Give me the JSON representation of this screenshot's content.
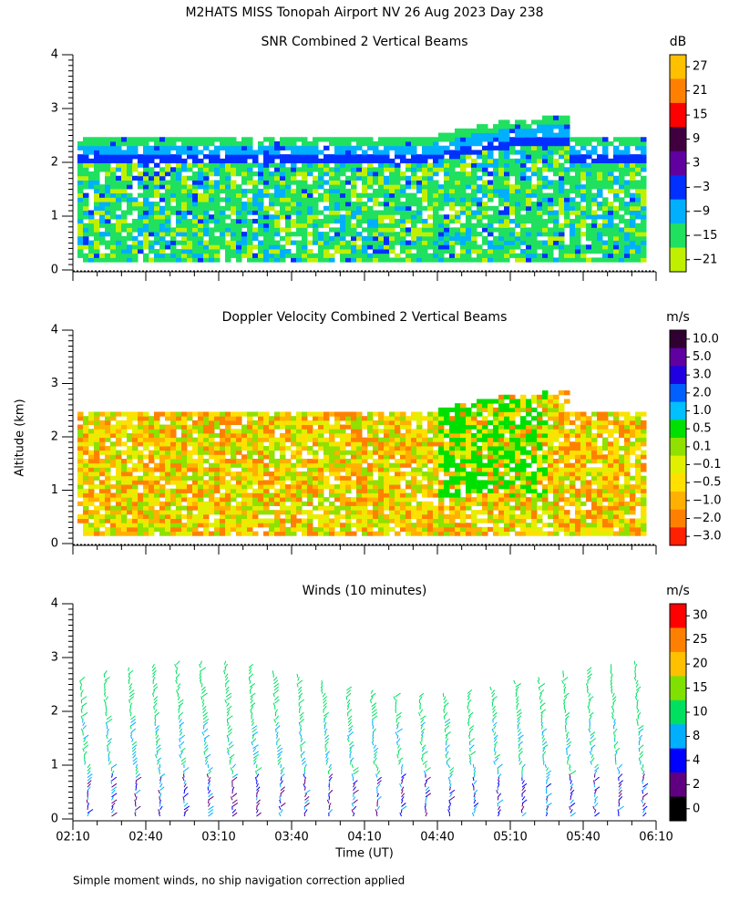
{
  "title": "M2HATS MISS Tonopah Airport NV  26 Aug 2023 Day 238",
  "y_axis_label": "Altitude (km)",
  "x_axis_label": "Time (UT)",
  "footnote": "Simple moment winds, no ship navigation correction applied",
  "x_ticks": [
    "02:10",
    "02:40",
    "03:10",
    "03:40",
    "04:10",
    "04:40",
    "05:10",
    "05:40",
    "06:10"
  ],
  "panels": [
    {
      "title": "SNR Combined 2 Vertical Beams",
      "y_ticks": [
        "0",
        "1",
        "2",
        "3",
        "4"
      ],
      "colorbar": {
        "unit": "dB",
        "labels": [
          "27",
          "21",
          "15",
          "9",
          "3",
          "−3",
          "−9",
          "−15",
          "−21"
        ],
        "colors": [
          "#ffc000",
          "#ff8000",
          "#ff0000",
          "#400040",
          "#6000a0",
          "#0030ff",
          "#00b0ff",
          "#20e060",
          "#c0f000"
        ]
      }
    },
    {
      "title": "Doppler Velocity Combined 2 Vertical Beams",
      "y_ticks": [
        "0",
        "1",
        "2",
        "3",
        "4"
      ],
      "colorbar": {
        "unit": "m/s",
        "labels": [
          "10.0",
          "5.0",
          "3.0",
          "2.0",
          "1.0",
          "0.5",
          "0.1",
          "−0.1",
          "−0.5",
          "−1.0",
          "−2.0",
          "−3.0"
        ],
        "colors": [
          "#300030",
          "#6000a0",
          "#2000e0",
          "#0060ff",
          "#00c0ff",
          "#00e000",
          "#90e000",
          "#e0f000",
          "#ffe000",
          "#ffb000",
          "#ff8000",
          "#ff2000"
        ]
      }
    },
    {
      "title": "Winds (10 minutes)",
      "y_ticks": [
        "0",
        "1",
        "2",
        "3",
        "4"
      ],
      "colorbar": {
        "unit": "m/s",
        "labels": [
          "30",
          "25",
          "20",
          "15",
          "10",
          "8",
          "4",
          "2",
          "0"
        ],
        "colors": [
          "#ff0000",
          "#ff8000",
          "#ffc000",
          "#80e000",
          "#00e060",
          "#00b0ff",
          "#0000ff",
          "#600080",
          "#000000"
        ]
      }
    }
  ]
}
